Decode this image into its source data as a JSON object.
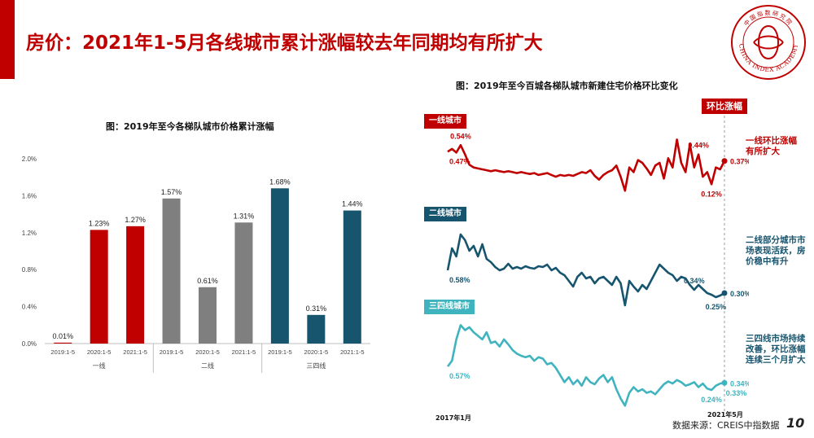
{
  "page": {
    "title": "房价：2021年1-5月各线城市累计涨幅较去年同期均有所扩大",
    "seal_text": "CHINA INDEX ACADEMY",
    "seal_cn": "中国指数研究院",
    "source": "数据来源：CREIS中指数据",
    "page_number": "10",
    "colors": {
      "accent": "#c00000",
      "tier1": "#c00000",
      "tier2": "#7f7f7f",
      "tier3": "#17556f",
      "tier3_line": "#3fb4bf"
    }
  },
  "chart_data": [
    {
      "type": "bar",
      "title": "图：2019年至今各梯队城市价格累计涨幅",
      "ylim": [
        0,
        2.0
      ],
      "yticks": [
        "0.0%",
        "0.4%",
        "0.8%",
        "1.2%",
        "1.6%",
        "2.0%"
      ],
      "ytick_values": [
        0,
        0.4,
        0.8,
        1.2,
        1.6,
        2.0
      ],
      "categories": [
        "2019:1-5",
        "2020:1-5",
        "2021:1-5",
        "2019:1-5",
        "2020:1-5",
        "2021:1-5",
        "2019:1-5",
        "2020:1-5",
        "2021:1-5"
      ],
      "groups": [
        "一线",
        "二线",
        "三四线"
      ],
      "values": [
        0.01,
        1.23,
        1.27,
        1.57,
        0.61,
        1.31,
        1.68,
        0.31,
        1.44
      ],
      "data_labels": [
        "0.01%",
        "1.23%",
        "1.27%",
        "1.57%",
        "0.61%",
        "1.31%",
        "1.68%",
        "0.31%",
        "1.44%"
      ],
      "colors": [
        "#c00000",
        "#c00000",
        "#c00000",
        "#7f7f7f",
        "#7f7f7f",
        "#7f7f7f",
        "#17556f",
        "#17556f",
        "#17556f"
      ],
      "grid": false
    },
    {
      "type": "line",
      "title": "图：2019年至今百城各梯队城市新建住宅价格环比变化",
      "x_start": "2017年1月",
      "x_end": "2021年5月",
      "marker_label": "环比涨幅",
      "series": [
        {
          "name": "一线城市",
          "color": "#c00000",
          "values": [
            0.47,
            0.5,
            0.46,
            0.54,
            0.44,
            0.33,
            0.3,
            0.29,
            0.28,
            0.27,
            0.26,
            0.27,
            0.26,
            0.25,
            0.26,
            0.25,
            0.24,
            0.25,
            0.24,
            0.23,
            0.24,
            0.22,
            0.23,
            0.24,
            0.22,
            0.2,
            0.22,
            0.21,
            0.22,
            0.21,
            0.23,
            0.25,
            0.24,
            0.27,
            0.21,
            0.17,
            0.22,
            0.25,
            0.27,
            0.32,
            0.2,
            0.05,
            0.3,
            0.25,
            0.38,
            0.35,
            0.29,
            0.22,
            0.32,
            0.35,
            0.18,
            0.4,
            0.3,
            0.6,
            0.35,
            0.25,
            0.55,
            0.3,
            0.44,
            0.2,
            0.25,
            0.12,
            0.3,
            0.28,
            0.37
          ],
          "labels": [
            {
              "i": 0,
              "text": "0.47%",
              "pos": "below"
            },
            {
              "i": 3,
              "text": "0.54%",
              "pos": "above"
            },
            {
              "i": 58,
              "text": "0.44%",
              "pos": "above"
            },
            {
              "i": 61,
              "text": "0.12%",
              "pos": "below"
            },
            {
              "i": 64,
              "text": "0.37%",
              "pos": "right"
            }
          ],
          "note": "一线环比涨幅\n有所扩大"
        },
        {
          "name": "二线城市",
          "color": "#17556f",
          "values": [
            0.58,
            0.85,
            0.75,
            1.02,
            0.95,
            0.82,
            0.88,
            0.75,
            0.9,
            0.72,
            0.68,
            0.62,
            0.58,
            0.6,
            0.66,
            0.6,
            0.62,
            0.6,
            0.63,
            0.61,
            0.6,
            0.63,
            0.62,
            0.65,
            0.58,
            0.61,
            0.55,
            0.52,
            0.45,
            0.38,
            0.5,
            0.55,
            0.48,
            0.5,
            0.42,
            0.48,
            0.5,
            0.45,
            0.4,
            0.5,
            0.42,
            0.15,
            0.45,
            0.38,
            0.32,
            0.4,
            0.35,
            0.45,
            0.55,
            0.65,
            0.6,
            0.55,
            0.52,
            0.45,
            0.5,
            0.48,
            0.4,
            0.34,
            0.4,
            0.35,
            0.3,
            0.28,
            0.25,
            0.27,
            0.3
          ],
          "labels": [
            {
              "i": 0,
              "text": "0.58%",
              "pos": "below"
            },
            {
              "i": 57,
              "text": "0.34%",
              "pos": "above"
            },
            {
              "i": 62,
              "text": "0.25%",
              "pos": "below"
            },
            {
              "i": 64,
              "text": "0.30%",
              "pos": "right"
            }
          ],
          "note": "二线部分城市市\n场表现活跃，房\n价稳中有升"
        },
        {
          "name": "三四线城市",
          "color": "#3fb4bf",
          "values": [
            0.57,
            0.65,
            0.95,
            1.15,
            1.08,
            1.12,
            1.05,
            1.0,
            0.95,
            1.05,
            0.9,
            0.92,
            0.85,
            0.95,
            0.88,
            0.8,
            0.75,
            0.72,
            0.7,
            0.72,
            0.65,
            0.7,
            0.68,
            0.6,
            0.62,
            0.55,
            0.45,
            0.35,
            0.42,
            0.32,
            0.38,
            0.3,
            0.42,
            0.35,
            0.32,
            0.4,
            0.45,
            0.35,
            0.42,
            0.25,
            0.12,
            0.02,
            0.2,
            0.28,
            0.22,
            0.25,
            0.2,
            0.22,
            0.18,
            0.25,
            0.32,
            0.36,
            0.33,
            0.38,
            0.35,
            0.3,
            0.32,
            0.35,
            0.28,
            0.33,
            0.26,
            0.24,
            0.3,
            0.33,
            0.34
          ],
          "labels": [
            {
              "i": 0,
              "text": "0.57%",
              "pos": "below"
            },
            {
              "i": 61,
              "text": "0.24%",
              "pos": "below"
            },
            {
              "i": 63,
              "text": "0.33%",
              "pos": "right-below"
            },
            {
              "i": 64,
              "text": "0.34%",
              "pos": "right"
            }
          ],
          "note": "三四线市场持续\n改善，环比涨幅\n连续三个月扩大"
        }
      ]
    }
  ]
}
